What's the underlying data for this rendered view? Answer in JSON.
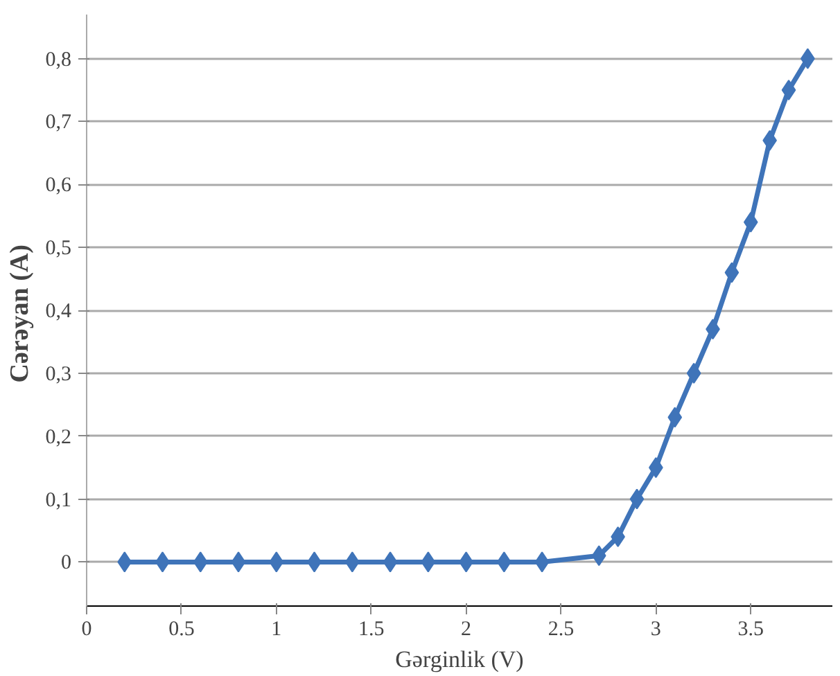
{
  "chart_data": {
    "type": "line",
    "xlabel": "Gərginlik (V)",
    "ylabel": "Cərəyan  (A)",
    "x": [
      0.2,
      0.4,
      0.6,
      0.8,
      1.0,
      1.2,
      1.4,
      1.6,
      1.8,
      2.0,
      2.2,
      2.4,
      2.7,
      2.8,
      2.9,
      3.0,
      3.1,
      3.2,
      3.3,
      3.4,
      3.5,
      3.6,
      3.7,
      3.8
    ],
    "series": [
      {
        "color": "#3f74b9",
        "values": [
          0,
          0,
          0,
          0,
          0,
          0,
          0,
          0,
          0,
          0,
          0,
          0,
          0.01,
          0.04,
          0.1,
          0.15,
          0.23,
          0.3,
          0.37,
          0.46,
          0.54,
          0.67,
          0.75,
          0.8
        ]
      }
    ],
    "xlim": [
      0,
      3.93
    ],
    "ylim": [
      -0.07,
      0.87
    ],
    "xticks": [
      0,
      0.5,
      1,
      1.5,
      2,
      2.5,
      3,
      3.5
    ],
    "yticks": [
      {
        "value": 0,
        "label": "0"
      },
      {
        "value": 0.1,
        "label": "0,1"
      },
      {
        "value": 0.2,
        "label": "0,2"
      },
      {
        "value": 0.3,
        "label": "0,3"
      },
      {
        "value": 0.4,
        "label": "0,4"
      },
      {
        "value": 0.5,
        "label": "0,5"
      },
      {
        "value": 0.6,
        "label": "0,6"
      },
      {
        "value": 0.7,
        "label": "0,7"
      },
      {
        "value": 0.8,
        "label": "0,8"
      }
    ],
    "grid": "y",
    "marker": "diamond",
    "line_style": "solid"
  }
}
